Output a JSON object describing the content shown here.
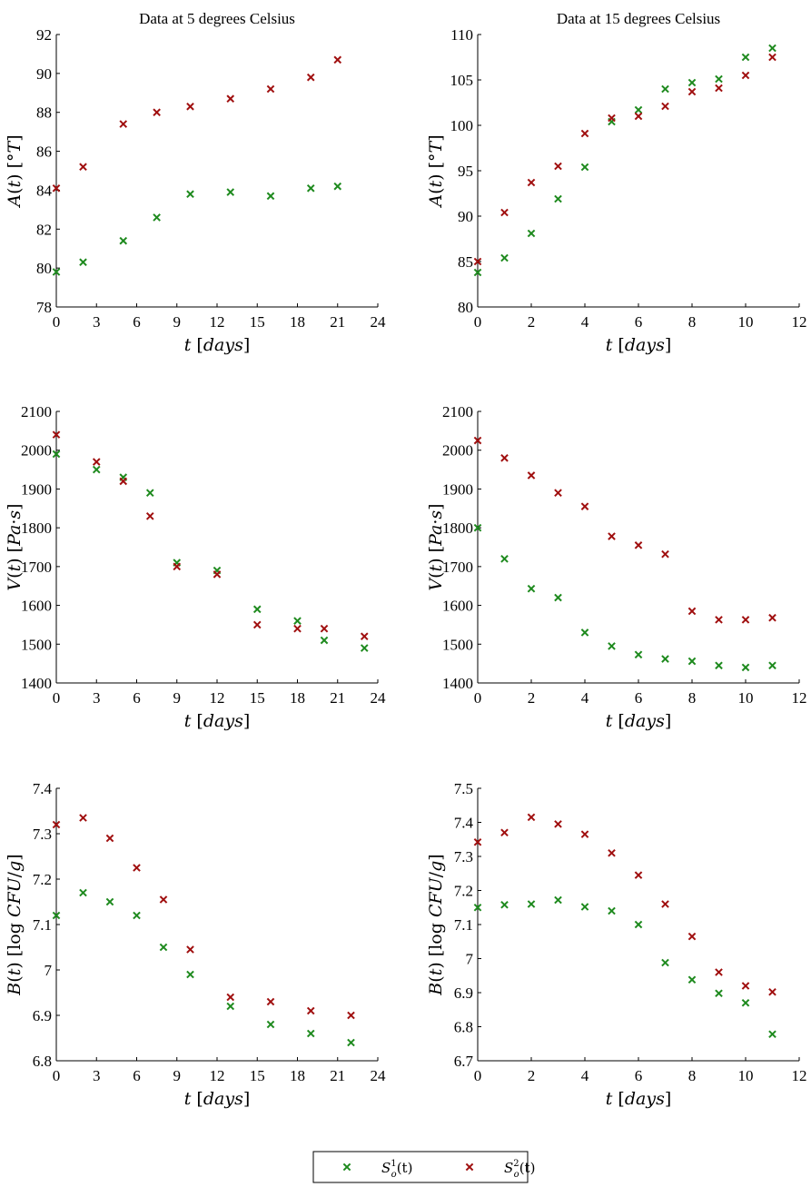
{
  "colors": {
    "s1": "#1e8a1e",
    "s2": "#a00f0f",
    "axis": "#000000"
  },
  "legend": {
    "placement": "bottom-center",
    "items": [
      {
        "name": "S_o^1(t)",
        "label_base": "S",
        "label_sub": "o",
        "label_sup": "1",
        "label_tail": "(t)",
        "color_key": "s1"
      },
      {
        "name": "S_o^2(t)",
        "label_base": "S",
        "label_sub": "o",
        "label_sup": "2",
        "label_tail": "(t)",
        "color_key": "s2"
      }
    ]
  },
  "chart_data": [
    {
      "type": "scatter",
      "title": "Data at 5 degrees Celsius",
      "xlabel": "t [days]",
      "ylabel": "A(t) [°T]",
      "xlim": [
        0,
        24
      ],
      "ylim": [
        78,
        92
      ],
      "xticks": [
        "0",
        "3",
        "6",
        "9",
        "12",
        "15",
        "18",
        "21",
        "24"
      ],
      "yticks": [
        "78",
        "80",
        "82",
        "84",
        "86",
        "88",
        "90",
        "92"
      ],
      "series": [
        {
          "name": "S_o^1(t)",
          "x": [
            0,
            2,
            5,
            7.5,
            10,
            13,
            16,
            19,
            21
          ],
          "y": [
            79.8,
            80.3,
            81.4,
            82.6,
            83.8,
            83.9,
            83.7,
            84.1,
            84.2
          ]
        },
        {
          "name": "S_o^2(t)",
          "x": [
            0,
            2,
            5,
            7.5,
            10,
            13,
            16,
            19,
            21
          ],
          "y": [
            84.1,
            85.2,
            87.4,
            88.0,
            88.3,
            88.7,
            89.2,
            89.8,
            90.7
          ]
        }
      ]
    },
    {
      "type": "scatter",
      "title": "Data at 15 degrees Celsius",
      "xlabel": "t [days]",
      "ylabel": "A(t) [°T]",
      "xlim": [
        0,
        12
      ],
      "ylim": [
        80,
        110
      ],
      "xticks": [
        "0",
        "2",
        "4",
        "6",
        "8",
        "10",
        "12"
      ],
      "yticks": [
        "80",
        "85",
        "90",
        "95",
        "100",
        "105",
        "110"
      ],
      "series": [
        {
          "name": "S_o^1(t)",
          "x": [
            0,
            1,
            2,
            3,
            4,
            5,
            6,
            7,
            8,
            9,
            10,
            11
          ],
          "y": [
            83.8,
            85.4,
            88.1,
            91.9,
            95.4,
            100.4,
            101.7,
            104.0,
            104.7,
            105.1,
            107.5,
            108.5
          ]
        },
        {
          "name": "S_o^2(t)",
          "x": [
            0,
            1,
            2,
            3,
            4,
            5,
            6,
            7,
            8,
            9,
            10,
            11
          ],
          "y": [
            85.0,
            90.4,
            93.7,
            95.5,
            99.1,
            100.8,
            101.0,
            102.1,
            103.7,
            104.1,
            105.5,
            107.5
          ]
        }
      ]
    },
    {
      "type": "scatter",
      "title": "",
      "xlabel": "t [days]",
      "ylabel": "V(t) [Pa·s]",
      "xlim": [
        0,
        24
      ],
      "ylim": [
        1400,
        2100
      ],
      "xticks": [
        "0",
        "3",
        "6",
        "9",
        "12",
        "15",
        "18",
        "21",
        "24"
      ],
      "yticks": [
        "1400",
        "1500",
        "1600",
        "1700",
        "1800",
        "1900",
        "2000",
        "2100"
      ],
      "series": [
        {
          "name": "S_o^1(t)",
          "x": [
            0,
            3,
            5,
            7,
            9,
            12,
            15,
            18,
            20,
            23
          ],
          "y": [
            1990,
            1950,
            1930,
            1890,
            1710,
            1690,
            1590,
            1560,
            1510,
            1490
          ]
        },
        {
          "name": "S_o^2(t)",
          "x": [
            0,
            3,
            5,
            7,
            9,
            12,
            15,
            18,
            20,
            23
          ],
          "y": [
            2040,
            1970,
            1920,
            1830,
            1700,
            1680,
            1550,
            1540,
            1540,
            1520
          ]
        }
      ]
    },
    {
      "type": "scatter",
      "title": "",
      "xlabel": "t [days]",
      "ylabel": "V(t) [Pa·s]",
      "xlim": [
        0,
        12
      ],
      "ylim": [
        1400,
        2100
      ],
      "xticks": [
        "0",
        "2",
        "4",
        "6",
        "8",
        "10",
        "12"
      ],
      "yticks": [
        "1400",
        "1500",
        "1600",
        "1700",
        "1800",
        "1900",
        "2000",
        "2100"
      ],
      "series": [
        {
          "name": "S_o^1(t)",
          "x": [
            0,
            1,
            2,
            3,
            4,
            5,
            6,
            7,
            8,
            9,
            10,
            11
          ],
          "y": [
            1800,
            1720,
            1643,
            1620,
            1530,
            1495,
            1473,
            1462,
            1456,
            1445,
            1440,
            1445
          ]
        },
        {
          "name": "S_o^2(t)",
          "x": [
            0,
            1,
            2,
            3,
            4,
            5,
            6,
            7,
            8,
            9,
            10,
            11
          ],
          "y": [
            2025,
            1980,
            1935,
            1890,
            1855,
            1778,
            1755,
            1732,
            1585,
            1563,
            1563,
            1568
          ]
        }
      ]
    },
    {
      "type": "scatter",
      "title": "",
      "xlabel": "t [days]",
      "ylabel": "B(t) [log CFU/g]",
      "xlim": [
        0,
        24
      ],
      "ylim": [
        6.8,
        7.4
      ],
      "xticks": [
        "0",
        "3",
        "6",
        "9",
        "12",
        "15",
        "18",
        "21",
        "24"
      ],
      "yticks": [
        "6.8",
        "6.9",
        "7",
        "7.1",
        "7.2",
        "7.3",
        "7.4"
      ],
      "series": [
        {
          "name": "S_o^1(t)",
          "x": [
            0,
            2,
            4,
            6,
            8,
            10,
            13,
            16,
            19,
            22
          ],
          "y": [
            7.12,
            7.17,
            7.15,
            7.12,
            7.05,
            6.99,
            6.92,
            6.88,
            6.86,
            6.84
          ]
        },
        {
          "name": "S_o^2(t)",
          "x": [
            0,
            2,
            4,
            6,
            8,
            10,
            13,
            16,
            19,
            22
          ],
          "y": [
            7.32,
            7.335,
            7.29,
            7.225,
            7.155,
            7.045,
            6.94,
            6.93,
            6.91,
            6.9
          ]
        }
      ]
    },
    {
      "type": "scatter",
      "title": "",
      "xlabel": "t [days]",
      "ylabel": "B(t) [log CFU/g]",
      "xlim": [
        0,
        12
      ],
      "ylim": [
        6.7,
        7.5
      ],
      "xticks": [
        "0",
        "2",
        "4",
        "6",
        "8",
        "10",
        "12"
      ],
      "yticks": [
        "6.7",
        "6.8",
        "6.9",
        "7",
        "7.1",
        "7.2",
        "7.3",
        "7.4",
        "7.5"
      ],
      "series": [
        {
          "name": "S_o^1(t)",
          "x": [
            0,
            1,
            2,
            3,
            4,
            5,
            6,
            7,
            8,
            9,
            10,
            11
          ],
          "y": [
            7.15,
            7.158,
            7.16,
            7.172,
            7.152,
            7.14,
            7.1,
            6.988,
            6.938,
            6.898,
            6.87,
            6.778
          ]
        },
        {
          "name": "S_o^2(t)",
          "x": [
            0,
            1,
            2,
            3,
            4,
            5,
            6,
            7,
            8,
            9,
            10,
            11
          ],
          "y": [
            7.342,
            7.37,
            7.415,
            7.395,
            7.365,
            7.31,
            7.245,
            7.16,
            7.065,
            6.96,
            6.92,
            6.902
          ]
        }
      ]
    }
  ]
}
